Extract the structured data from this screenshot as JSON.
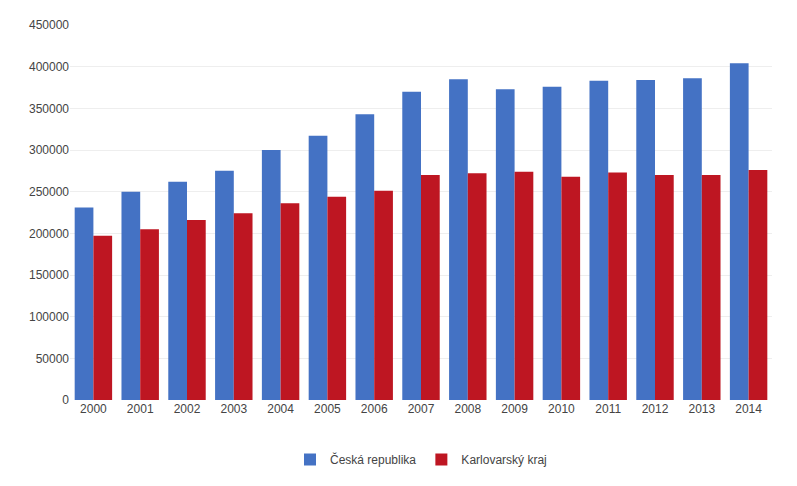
{
  "chart_data": {
    "type": "bar",
    "categories": [
      "2000",
      "2001",
      "2002",
      "2003",
      "2004",
      "2005",
      "2006",
      "2007",
      "2008",
      "2009",
      "2010",
      "2011",
      "2012",
      "2013",
      "2014"
    ],
    "series": [
      {
        "name": "Česká republika",
        "color": "#4472C4",
        "values": [
          231000,
          250000,
          262000,
          275000,
          300000,
          317000,
          343000,
          370000,
          385000,
          373000,
          376000,
          383000,
          384000,
          386000,
          404000
        ]
      },
      {
        "name": "Karlovarský kraj",
        "color": "#BE1622",
        "values": [
          197000,
          205000,
          216000,
          224000,
          236000,
          244000,
          251000,
          270000,
          272000,
          274000,
          268000,
          273000,
          270000,
          270000,
          276000
        ]
      }
    ],
    "ylim": [
      0,
      450000
    ],
    "yticks": [
      0,
      50000,
      100000,
      150000,
      200000,
      250000,
      300000,
      350000,
      400000,
      450000
    ],
    "grid": true,
    "legend": "bottom"
  }
}
